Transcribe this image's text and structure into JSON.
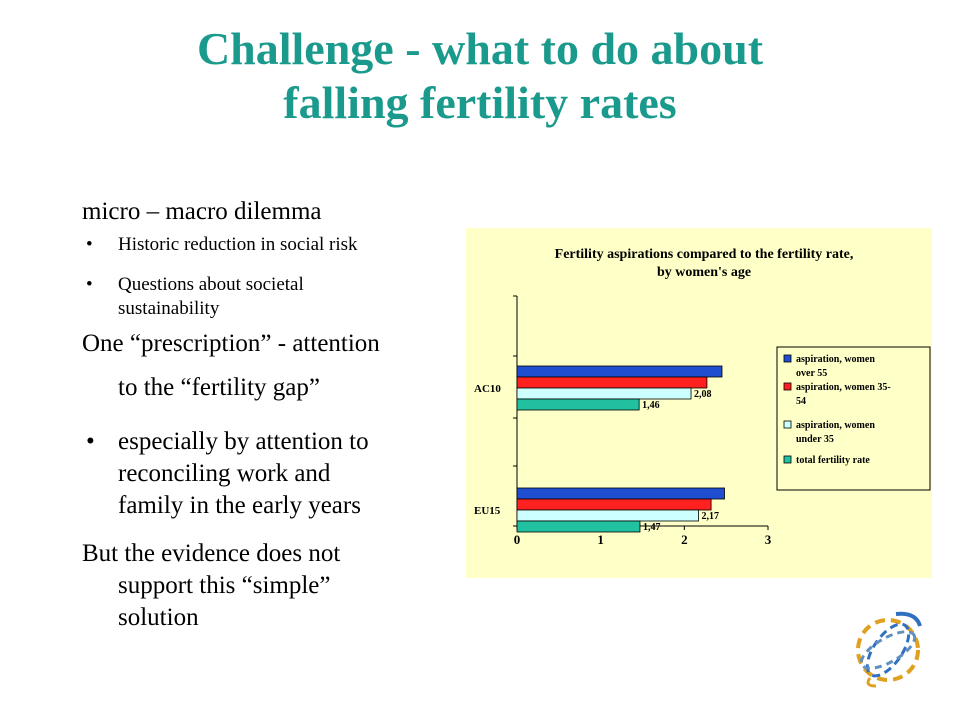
{
  "slide": {
    "title_line1": "Challenge - what to do about",
    "title_line2": "falling fertility rates",
    "heading": "micro – macro dilemma",
    "sub_bullets": [
      "Historic reduction in social risk",
      "Questions about societal",
      "sustainability"
    ],
    "prescription_line1": "One “prescription” - attention",
    "prescription_line2": "to the “fertility gap”",
    "especially_lines": [
      "especially by attention to",
      "reconciling work and",
      "family in the early years"
    ],
    "evidence_lines": [
      "But the evidence does not",
      "support this “simple”",
      "solution"
    ],
    "bullet_char": "•"
  },
  "colors": {
    "title": "#1a9a8c",
    "chart_bg": "#ffffc8",
    "aspiration_over_55": "#1f4fd0",
    "aspiration_35_54": "#ff2020",
    "aspiration_under_35": "#ccffff",
    "total_fertility_rate": "#20c0a0"
  },
  "chart_data": {
    "type": "bar",
    "orientation": "horizontal",
    "title_line1": "Fertility aspirations compared to the fertility rate,",
    "title_line2": "by women's age",
    "categories": [
      "AC10",
      "EU15"
    ],
    "series": [
      {
        "name": "aspiration, women over 55",
        "legend_lines": [
          "aspiration, women",
          "over 55"
        ],
        "values": [
          2.45,
          2.48
        ]
      },
      {
        "name": "aspiration, women 35-54",
        "legend_lines": [
          "aspiration, women 35-",
          "54"
        ],
        "values": [
          2.27,
          2.32
        ]
      },
      {
        "name": "aspiration, women under 35",
        "legend_lines": [
          "aspiration, women",
          "under 35"
        ],
        "values": [
          2.08,
          2.17
        ],
        "labels": [
          "2,08",
          "2,17"
        ]
      },
      {
        "name": "total fertility rate",
        "legend_lines": [
          "total fertility rate"
        ],
        "values": [
          1.46,
          1.47
        ],
        "labels": [
          "1,46",
          "1,47"
        ]
      }
    ],
    "xlim": [
      0,
      3
    ],
    "xticks": [
      "0",
      "1",
      "2",
      "3"
    ],
    "grid": false,
    "legend": "right"
  }
}
